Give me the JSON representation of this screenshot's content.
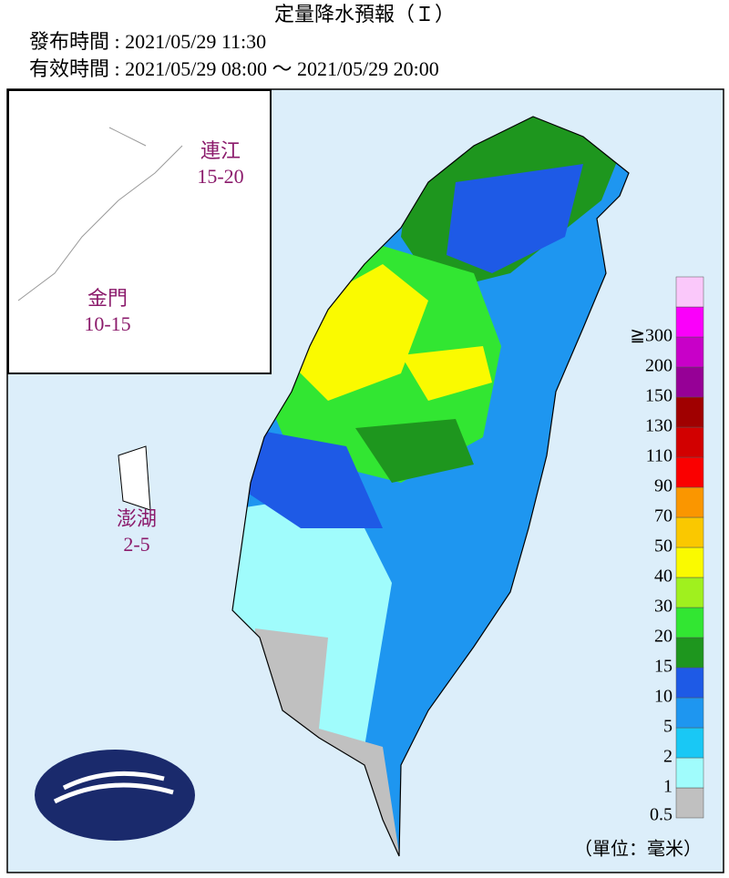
{
  "header": {
    "title": "定量降水預報（Ｉ）",
    "issued": "發布時間 : 2021/05/29 11:30",
    "valid": "有效時間 : 2021/05/29 08:00 ～ 2021/05/29 20:00"
  },
  "islands": [
    {
      "name": "連江",
      "range": "15-20"
    },
    {
      "name": "金門",
      "range": "10-15"
    },
    {
      "name": "澎湖",
      "range": "2-5"
    }
  ],
  "legend": {
    "unit": "（單位：毫米）",
    "items": [
      {
        "label": "0.5",
        "color": "#c0c0c0"
      },
      {
        "label": "1",
        "color": "#a0fcfc"
      },
      {
        "label": "2",
        "color": "#19c8f5"
      },
      {
        "label": "5",
        "color": "#1e96f0"
      },
      {
        "label": "10",
        "color": "#1e5ae6"
      },
      {
        "label": "15",
        "color": "#1e961e"
      },
      {
        "label": "20",
        "color": "#32e632"
      },
      {
        "label": "30",
        "color": "#a0f01e"
      },
      {
        "label": "40",
        "color": "#fafa00"
      },
      {
        "label": "50",
        "color": "#fac800"
      },
      {
        "label": "70",
        "color": "#fa9600"
      },
      {
        "label": "90",
        "color": "#fa0000"
      },
      {
        "label": "110",
        "color": "#d20000"
      },
      {
        "label": "130",
        "color": "#a00000"
      },
      {
        "label": "150",
        "color": "#960096"
      },
      {
        "label": "200",
        "color": "#c800c8"
      },
      {
        "label": "≧300",
        "color": "#fa00fa"
      },
      {
        "label": null,
        "color": "#fac8fa"
      }
    ]
  }
}
